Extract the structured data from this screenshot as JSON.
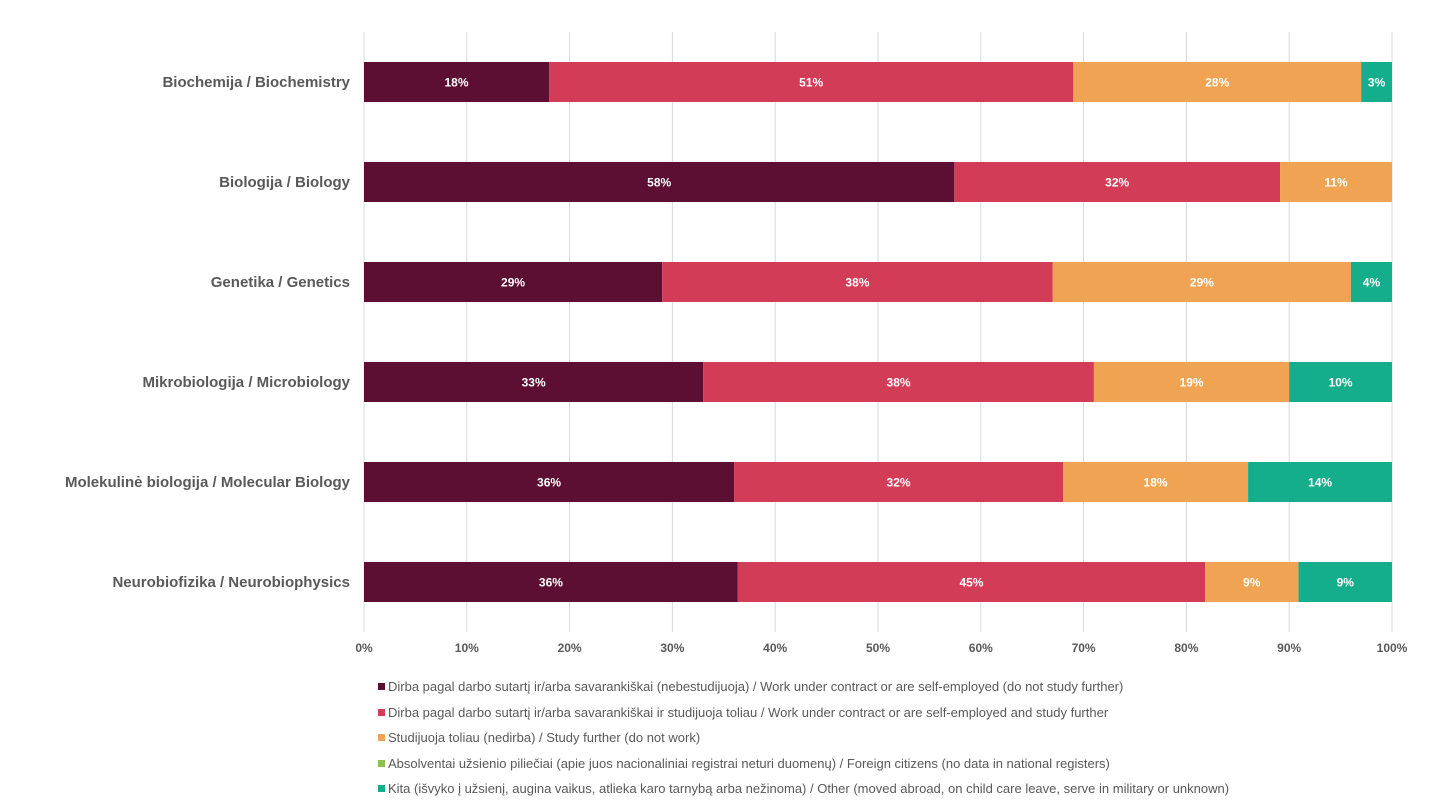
{
  "chart_data": {
    "type": "bar",
    "orientation": "horizontal",
    "stacked": true,
    "title": "",
    "xlabel": "",
    "ylabel": "",
    "xlim": [
      0,
      100
    ],
    "x_ticks": [
      "0%",
      "10%",
      "20%",
      "30%",
      "40%",
      "50%",
      "60%",
      "70%",
      "80%",
      "90%",
      "100%"
    ],
    "grid": true,
    "legend_position": "bottom",
    "categories": [
      "Biochemija / Biochemistry",
      "Biologija / Biology",
      "Genetika / Genetics",
      "Mikrobiologija / Microbiology",
      "Molekulinė biologija / Molecular Biology",
      "Neurobiofizika / Neurobiophysics"
    ],
    "series": [
      {
        "name": "Dirba pagal darbo sutartį ir/arba savarankiškai (nebestudijuoja) / Work under contract or are self-employed (do not study further)",
        "color": "#5c0f33",
        "values": [
          18,
          58,
          29,
          33,
          36,
          36
        ],
        "labels": [
          "18%",
          "58%",
          "29%",
          "33%",
          "36%",
          "36%"
        ]
      },
      {
        "name": "Dirba pagal darbo sutartį ir/arba savarankiškai  ir studijuoja toliau / Work under contract or are self-employed and study further",
        "color": "#d33c57",
        "values": [
          51,
          32,
          38,
          38,
          32,
          45
        ],
        "labels": [
          "51%",
          "32%",
          "38%",
          "38%",
          "32%",
          "45%"
        ]
      },
      {
        "name": "Studijuoja toliau (nedirba) / Study further (do not work)",
        "color": "#f0a352",
        "values": [
          28,
          11,
          29,
          19,
          18,
          9
        ],
        "labels": [
          "28%",
          "11%",
          "29%",
          "19%",
          "18%",
          "9%"
        ]
      },
      {
        "name": "Absolventai užsienio piliečiai (apie juos nacionaliniai registrai neturi duomenų) / Foreign citizens (no data in national registers)",
        "color": "#8cc152",
        "values": [
          0,
          0,
          0,
          0,
          0,
          0
        ],
        "labels": [
          "",
          "",
          "",
          "",
          "",
          ""
        ]
      },
      {
        "name": "Kita (išvyko į užsienį, augina vaikus, atlieka karo tarnybą arba nežinoma) / Other (moved abroad, on child care leave, serve in military or unknown)",
        "color": "#14ae8c",
        "values": [
          3,
          0,
          4,
          10,
          14,
          9
        ],
        "labels": [
          "3%",
          "",
          "4%",
          "10%",
          "14%",
          "9%"
        ]
      }
    ]
  }
}
